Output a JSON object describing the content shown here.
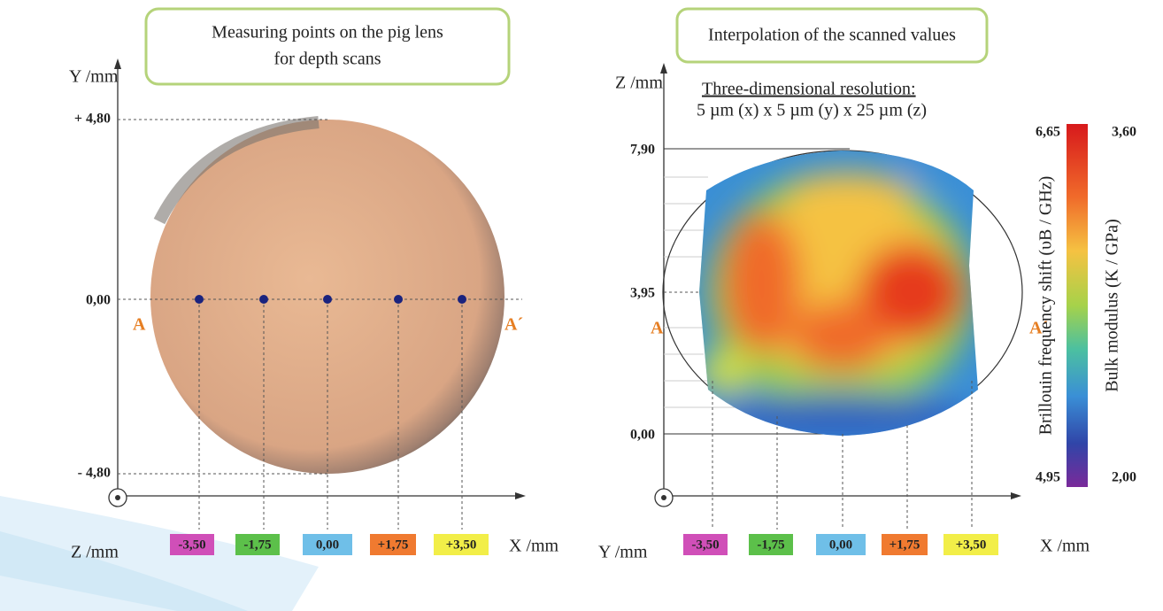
{
  "left": {
    "title": [
      "Measuring points on the pig lens",
      "for depth scans"
    ],
    "y_axis_label": "Y /mm",
    "y_ticks": [
      "+ 4,80",
      "0,00",
      "- 4,80"
    ],
    "z_axis_label": "Z /mm",
    "x_axis_label": "X /mm",
    "marker_a": "A",
    "marker_a_prime": "A´",
    "positions": [
      "-3,50",
      "-1,75",
      "0,00",
      "+1,75",
      "+3,50"
    ]
  },
  "right": {
    "title": "Interpolation of the scanned values",
    "z_axis_label": "Z /mm",
    "resolution_heading": "Three-dimensional resolution:",
    "resolution": "5 µm (x) x 5 µm (y) x 25 µm (z)",
    "z_ticks": [
      "7,90",
      "3,95",
      "0,00"
    ],
    "y_axis_label": "Y /mm",
    "x_axis_label": "X /mm",
    "marker_a": "A",
    "marker_a_prime": "A´",
    "positions": [
      "-3,50",
      "-1,75",
      "0,00",
      "+1,75",
      "+3,50"
    ],
    "colorbar": {
      "shift_max": "6,65",
      "shift_min": "4,95",
      "modulus_max": "3,60",
      "modulus_min": "2,00",
      "shift_label": "Brillouin frequency shift (υB / GHz)",
      "modulus_label": "Bulk modulus (K / GPa)"
    }
  }
}
